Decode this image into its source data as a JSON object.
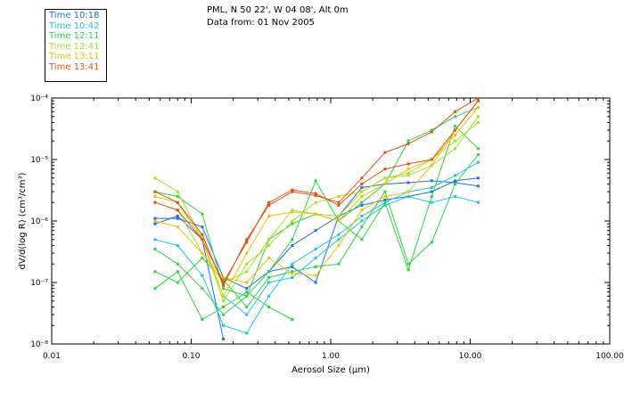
{
  "header": {
    "title": "PML, N 50 22', W 04 08', Alt 0m",
    "subtitle": "Data from: 01 Nov 2005"
  },
  "colors": {
    "axis": "#000000",
    "background": "#ffffff"
  },
  "chart_data": {
    "type": "line",
    "title": "PML, N 50 22', W 04 08', Alt 0m",
    "subtitle": "Data from: 01 Nov 2005",
    "xlabel": "Aerosol Size (µm)",
    "ylabel": "dV/d(log R) (cm³/cm³)",
    "xscale": "log",
    "yscale": "log",
    "xlim": [
      0.01,
      100
    ],
    "ylim": [
      1e-08,
      0.0001
    ],
    "grid": false,
    "legend_position": "top-left outside",
    "x_tick_labels": [
      "0.01",
      "0.10",
      "1.00",
      "10.00",
      "100.00"
    ],
    "x_tick_values": [
      0.01,
      0.1,
      1,
      10,
      100
    ],
    "y_tick_labels": [
      "10⁻⁸",
      "10⁻⁷",
      "10⁻⁶",
      "10⁻⁵",
      "10⁻⁴"
    ],
    "y_tick_values": [
      1e-08,
      1e-07,
      1e-06,
      1e-05,
      0.0001
    ],
    "x": [
      0.055,
      0.08,
      0.12,
      0.17,
      0.25,
      0.36,
      0.53,
      0.78,
      1.14,
      1.67,
      2.45,
      3.6,
      5.3,
      7.8,
      11.4
    ],
    "series": [
      {
        "name": "Time 10:18",
        "color": "#1e6fe8",
        "values": [
          9e-07,
          1.2e-06,
          5e-07,
          1.2e-08,
          null,
          null,
          null,
          null,
          null,
          null,
          null,
          null,
          null,
          null,
          null
        ]
      },
      {
        "name": "Time 10:18",
        "color": "#1e6fe8",
        "values": [
          1.1e-06,
          1.1e-06,
          8e-07,
          1.2e-07,
          8e-08,
          1.5e-07,
          4e-07,
          7e-07,
          1.2e-06,
          3.5e-06,
          4e-06,
          4.2e-06,
          4.5e-06,
          4.2e-06,
          3.7e-06
        ]
      },
      {
        "name": "Time 10:18",
        "color": "#1e6fe8",
        "values": [
          null,
          null,
          null,
          null,
          null,
          1.5e-07,
          1.8e-07,
          1e-07,
          1.2e-06,
          1.8e-06,
          2.2e-06,
          2.5e-06,
          3e-06,
          4.5e-06,
          5e-06
        ]
      },
      {
        "name": "Time 10:42",
        "color": "#18c8e0",
        "values": [
          5e-07,
          4e-07,
          1.3e-07,
          2e-08,
          1.5e-08,
          6e-08,
          2e-07,
          3.5e-07,
          6e-07,
          1.2e-06,
          2e-06,
          3e-06,
          3.5e-06,
          5.5e-06,
          9e-06
        ]
      },
      {
        "name": "Time 10:42",
        "color": "#18c8e0",
        "values": [
          null,
          null,
          null,
          6e-08,
          3e-08,
          1e-07,
          1.2e-07,
          2.5e-07,
          5e-07,
          1e-06,
          1.8e-06,
          2.5e-06,
          2e-06,
          2.5e-06,
          2e-06
        ]
      },
      {
        "name": "Time 12:11",
        "color": "#2ad640",
        "values": [
          8e-08,
          1.5e-07,
          2.5e-08,
          4e-08,
          7e-08,
          4e-08,
          2.5e-08,
          null,
          null,
          null,
          null,
          null,
          null,
          null,
          null
        ]
      },
      {
        "name": "Time 12:11",
        "color": "#2ad640",
        "values": [
          3.5e-07,
          2e-07,
          8e-08,
          3e-08,
          6e-08,
          1.5e-07,
          5e-07,
          4.5e-06,
          1e-06,
          5e-07,
          2e-06,
          1.6e-07,
          2.5e-06,
          3.5e-05,
          1.5e-05
        ]
      },
      {
        "name": "Time 12:11",
        "color": "#2ad640",
        "values": [
          1.5e-07,
          1e-07,
          2.5e-07,
          1.1e-07,
          4e-08,
          1.2e-07,
          1.5e-07,
          1.8e-07,
          2e-07,
          8e-07,
          3e-06,
          2e-07,
          4.5e-07,
          4e-06,
          1.2e-05
        ]
      },
      {
        "name": "Time 12:11",
        "color": "#2ad640",
        "values": [
          3e-06,
          2.5e-06,
          1.3e-06,
          8e-08,
          6e-08,
          5e-07,
          9e-07,
          1.3e-06,
          1e-06,
          2e-06,
          4e-06,
          2e-05,
          3e-05,
          5e-05,
          7e-05
        ]
      },
      {
        "name": "Time 12:41",
        "color": "#a8e020",
        "values": [
          5e-06,
          3e-06,
          5e-07,
          5e-08,
          2e-07,
          4e-07,
          1e-06,
          2e-06,
          2.5e-06,
          3e-06,
          5e-06,
          6e-06,
          1e-05,
          2e-05,
          4e-05
        ]
      },
      {
        "name": "Time 12:41",
        "color": "#a8e020",
        "values": [
          2e-06,
          1.5e-06,
          3e-07,
          1e-07,
          1.5e-07,
          5e-07,
          1.5e-06,
          1.3e-06,
          1.2e-06,
          3e-06,
          5e-06,
          5.5e-06,
          8e-06,
          1.5e-05,
          5e-05
        ]
      },
      {
        "name": "Time 13:11",
        "color": "#f0c000",
        "values": [
          1e-06,
          8e-07,
          3e-07,
          1.2e-07,
          1e-07,
          2.5e-07,
          1.4e-07,
          1.3e-07,
          4e-07,
          1.5e-06,
          2.5e-06,
          3e-06,
          8e-06,
          3e-05,
          9e-05
        ]
      },
      {
        "name": "Time 13:11",
        "color": "#f0c000",
        "values": [
          2.5e-06,
          2e-06,
          5e-07,
          6e-08,
          3e-07,
          1.2e-06,
          1.4e-06,
          1.3e-06,
          1e-06,
          2.5e-06,
          4e-06,
          7e-06,
          1e-05,
          2.5e-05,
          7e-05
        ]
      },
      {
        "name": "Time 13:41",
        "color": "#e05010",
        "values": [
          2e-06,
          1.5e-06,
          5e-07,
          1e-07,
          4.5e-07,
          2e-06,
          3.2e-06,
          2.8e-06,
          1.8e-06,
          4e-06,
          7e-06,
          8.5e-06,
          1e-05,
          3e-05,
          9e-05
        ]
      },
      {
        "name": "Time 13:41",
        "color": "#e05010",
        "values": [
          3e-06,
          2e-06,
          6e-07,
          9e-08,
          5e-07,
          1.8e-06,
          3e-06,
          2.6e-06,
          2e-06,
          5e-06,
          1.3e-05,
          1.8e-05,
          2.8e-05,
          6e-05,
          0.0001
        ]
      }
    ]
  },
  "legend": [
    {
      "label": "Time 10:18",
      "color": "#1e6fe8"
    },
    {
      "label": "Time 10:42",
      "color": "#18c8e0"
    },
    {
      "label": "Time 12:11",
      "color": "#2ad640"
    },
    {
      "label": "Time 12:41",
      "color": "#a8e020"
    },
    {
      "label": "Time 13:11",
      "color": "#f0c000"
    },
    {
      "label": "Time 13:41",
      "color": "#e05010"
    }
  ]
}
